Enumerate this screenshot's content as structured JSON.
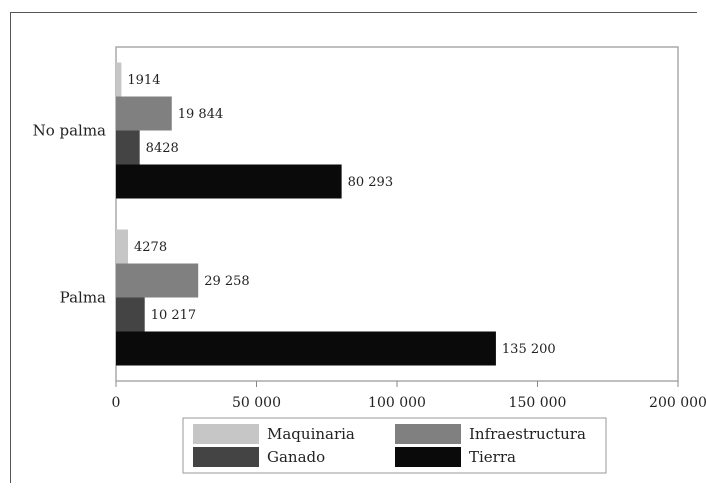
{
  "chart_data": {
    "type": "bar",
    "orientation": "horizontal",
    "categories": [
      "No palma",
      "Palma"
    ],
    "series": [
      {
        "name": "Maquinaria",
        "color": "#c6c6c6",
        "values": [
          1914,
          4278
        ],
        "labels": [
          "1914",
          "4278"
        ]
      },
      {
        "name": "Infraestructura",
        "color": "#808080",
        "values": [
          19844,
          29258
        ],
        "labels": [
          "19 844",
          "29 258"
        ]
      },
      {
        "name": "Ganado",
        "color": "#444444",
        "values": [
          8428,
          10217
        ],
        "labels": [
          "8428",
          "10 217"
        ]
      },
      {
        "name": "Tierra",
        "color": "#0a0a0a",
        "values": [
          80293,
          135200
        ],
        "labels": [
          "80 293",
          "135 200"
        ]
      }
    ],
    "xlim": [
      0,
      200000
    ],
    "xticks": [
      0,
      50000,
      100000,
      150000,
      200000
    ],
    "xtick_labels": [
      "0",
      "50 000",
      "100 000",
      "150 000",
      "200 000"
    ],
    "grid": false,
    "legend_placement": "bottom",
    "title": "",
    "xlabel": "",
    "ylabel": ""
  }
}
